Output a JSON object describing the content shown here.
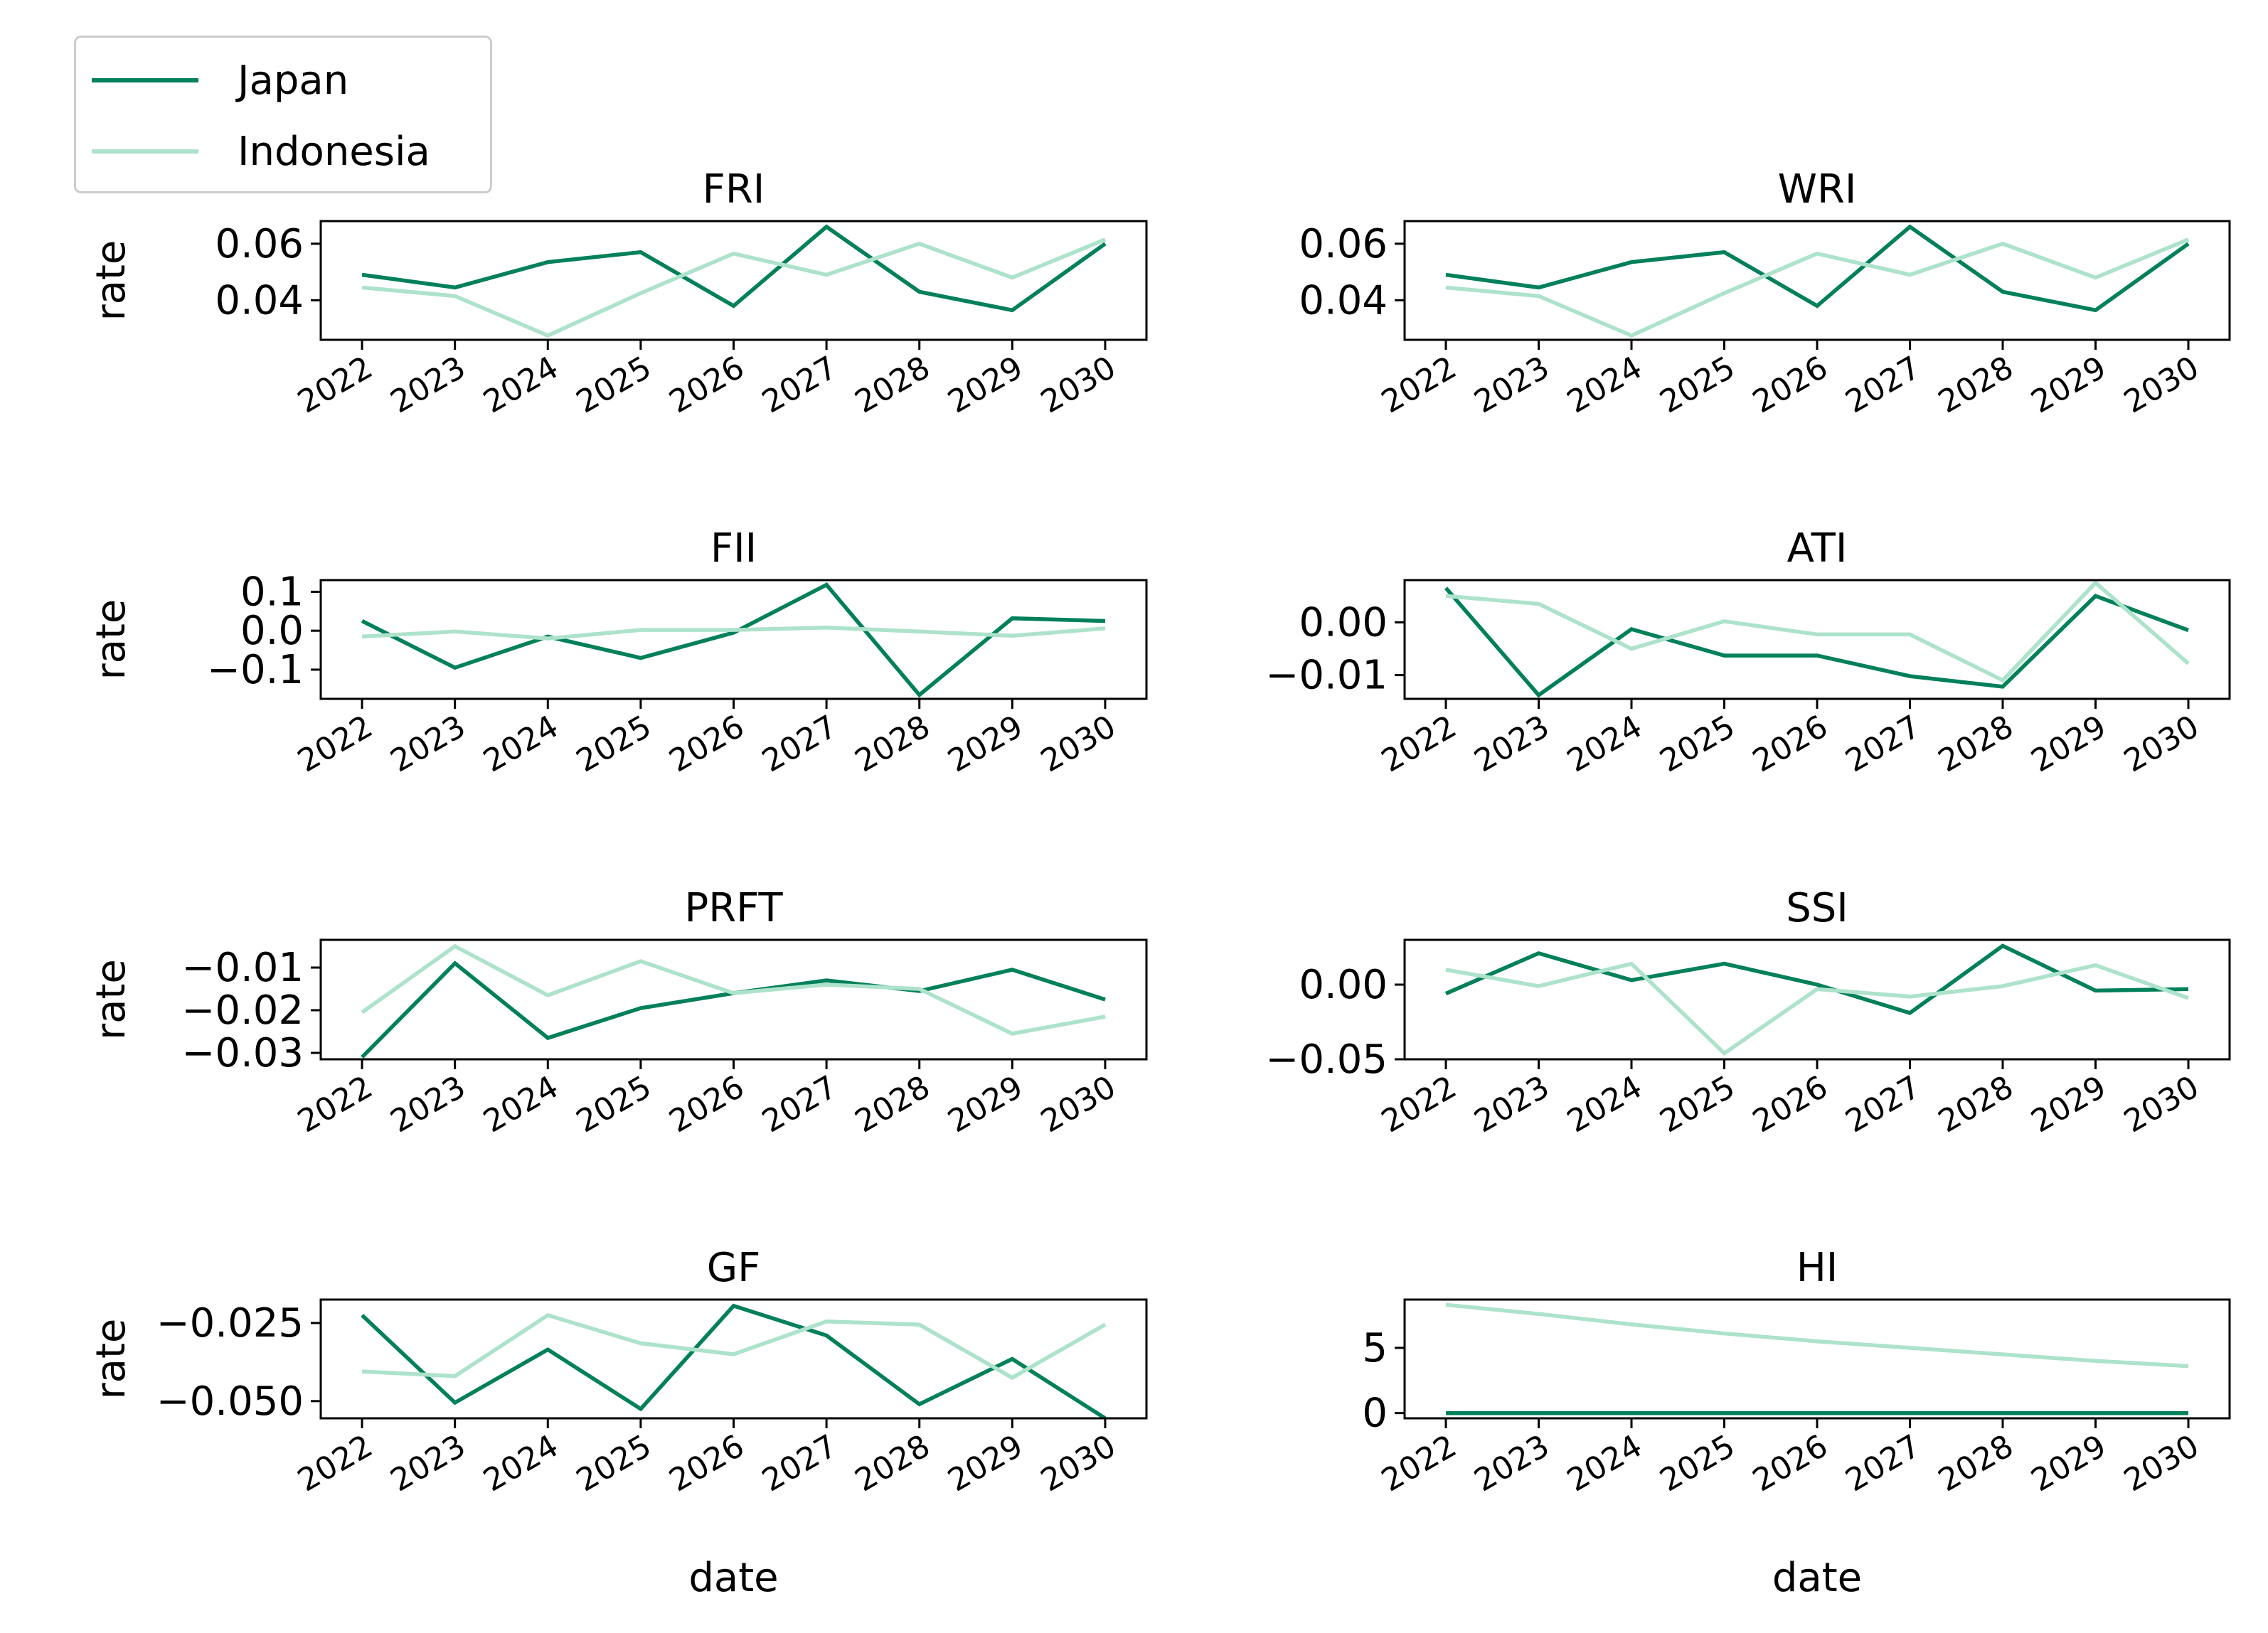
{
  "colors": {
    "japan": "#00805a",
    "indonesia": "#ade2cb"
  },
  "legend": {
    "items": [
      {
        "label": "Japan",
        "color": "#00805a"
      },
      {
        "label": "Indonesia",
        "color": "#ade2cb"
      }
    ]
  },
  "chart_data": [
    {
      "type": "line",
      "title": "FRI",
      "ylabel": "rate",
      "xlabel": "",
      "x": [
        2022,
        2023,
        2024,
        2025,
        2026,
        2027,
        2028,
        2029,
        2030
      ],
      "ylim": [
        0.026,
        0.068
      ],
      "yticks": [
        {
          "v": 0.04,
          "t": "0.04"
        },
        {
          "v": 0.06,
          "t": "0.06"
        }
      ],
      "series": [
        {
          "name": "Japan",
          "values": [
            0.049,
            0.0445,
            0.0535,
            0.057,
            0.038,
            0.066,
            0.043,
            0.0365,
            0.06
          ]
        },
        {
          "name": "Indonesia",
          "values": [
            0.0445,
            0.0415,
            0.0275,
            0.0425,
            0.0565,
            0.049,
            0.06,
            0.048,
            0.0615
          ]
        }
      ]
    },
    {
      "type": "line",
      "title": "WRI",
      "ylabel": "",
      "xlabel": "",
      "x": [
        2022,
        2023,
        2024,
        2025,
        2026,
        2027,
        2028,
        2029,
        2030
      ],
      "ylim": [
        0.026,
        0.068
      ],
      "yticks": [
        {
          "v": 0.04,
          "t": "0.04"
        },
        {
          "v": 0.06,
          "t": "0.06"
        }
      ],
      "series": [
        {
          "name": "Japan",
          "values": [
            0.049,
            0.0445,
            0.0535,
            0.057,
            0.038,
            0.066,
            0.043,
            0.0365,
            0.06
          ]
        },
        {
          "name": "Indonesia",
          "values": [
            0.0445,
            0.0415,
            0.0275,
            0.0425,
            0.0565,
            0.049,
            0.06,
            0.048,
            0.0615
          ]
        }
      ]
    },
    {
      "type": "line",
      "title": "FII",
      "ylabel": "rate",
      "xlabel": "",
      "x": [
        2022,
        2023,
        2024,
        2025,
        2026,
        2027,
        2028,
        2029,
        2030
      ],
      "ylim": [
        -0.175,
        0.13
      ],
      "yticks": [
        {
          "v": -0.1,
          "t": "−0.1"
        },
        {
          "v": 0.0,
          "t": "0.0"
        },
        {
          "v": 0.1,
          "t": "0.1"
        }
      ],
      "series": [
        {
          "name": "Japan",
          "values": [
            0.025,
            -0.095,
            -0.015,
            -0.07,
            -0.005,
            0.118,
            -0.165,
            0.032,
            0.025
          ]
        },
        {
          "name": "Indonesia",
          "values": [
            -0.015,
            -0.002,
            -0.02,
            0.002,
            0.002,
            0.008,
            -0.002,
            -0.013,
            0.006
          ]
        }
      ]
    },
    {
      "type": "line",
      "title": "ATI",
      "ylabel": "",
      "xlabel": "",
      "x": [
        2022,
        2023,
        2024,
        2025,
        2026,
        2027,
        2028,
        2029,
        2030
      ],
      "ylim": [
        -0.0145,
        0.008
      ],
      "yticks": [
        {
          "v": -0.01,
          "t": "−0.01"
        },
        {
          "v": 0.0,
          "t": "0.00"
        }
      ],
      "series": [
        {
          "name": "Japan",
          "values": [
            0.0065,
            -0.0138,
            -0.0013,
            -0.0063,
            -0.0063,
            -0.0102,
            -0.0122,
            0.005,
            -0.0015
          ]
        },
        {
          "name": "Indonesia",
          "values": [
            0.005,
            0.0035,
            -0.005,
            0.0002,
            -0.0023,
            -0.0023,
            -0.011,
            0.0075,
            -0.0078
          ]
        }
      ]
    },
    {
      "type": "line",
      "title": "PRFT",
      "ylabel": "rate",
      "xlabel": "",
      "x": [
        2022,
        2023,
        2024,
        2025,
        2026,
        2027,
        2028,
        2029,
        2030
      ],
      "ylim": [
        -0.0315,
        -0.0035
      ],
      "yticks": [
        {
          "v": -0.03,
          "t": "−0.03"
        },
        {
          "v": -0.02,
          "t": "−0.02"
        },
        {
          "v": -0.01,
          "t": "−0.01"
        }
      ],
      "series": [
        {
          "name": "Japan",
          "values": [
            -0.031,
            -0.009,
            -0.0265,
            -0.0195,
            -0.016,
            -0.013,
            -0.0155,
            -0.0105,
            -0.0175
          ]
        },
        {
          "name": "Indonesia",
          "values": [
            -0.0205,
            -0.005,
            -0.0165,
            -0.0085,
            -0.016,
            -0.014,
            -0.015,
            -0.0255,
            -0.0215
          ]
        }
      ]
    },
    {
      "type": "line",
      "title": "SSI",
      "ylabel": "",
      "xlabel": "",
      "x": [
        2022,
        2023,
        2024,
        2025,
        2026,
        2027,
        2028,
        2029,
        2030
      ],
      "ylim": [
        -0.05,
        0.03
      ],
      "yticks": [
        {
          "v": -0.05,
          "t": "−0.05"
        },
        {
          "v": 0.0,
          "t": "0.00"
        }
      ],
      "series": [
        {
          "name": "Japan",
          "values": [
            -0.006,
            0.021,
            0.003,
            0.014,
            0.0,
            -0.019,
            0.026,
            -0.004,
            -0.003
          ]
        },
        {
          "name": "Indonesia",
          "values": [
            0.01,
            -0.001,
            0.014,
            -0.046,
            -0.003,
            -0.008,
            -0.001,
            0.013,
            -0.009
          ]
        }
      ]
    },
    {
      "type": "line",
      "title": "GF",
      "ylabel": "rate",
      "xlabel": "date",
      "x": [
        2022,
        2023,
        2024,
        2025,
        2026,
        2027,
        2028,
        2029,
        2030
      ],
      "ylim": [
        -0.0555,
        -0.0175
      ],
      "yticks": [
        {
          "v": -0.05,
          "t": "−0.050"
        },
        {
          "v": -0.025,
          "t": "−0.025"
        }
      ],
      "series": [
        {
          "name": "Japan",
          "values": [
            -0.0225,
            -0.0505,
            -0.0335,
            -0.0525,
            -0.0195,
            -0.029,
            -0.051,
            -0.0365,
            -0.0555
          ]
        },
        {
          "name": "Indonesia",
          "values": [
            -0.0405,
            -0.042,
            -0.0225,
            -0.0315,
            -0.035,
            -0.0245,
            -0.0255,
            -0.0425,
            -0.0255
          ]
        }
      ]
    },
    {
      "type": "line",
      "title": "HI",
      "ylabel": "",
      "xlabel": "date",
      "x": [
        2022,
        2023,
        2024,
        2025,
        2026,
        2027,
        2028,
        2029,
        2030
      ],
      "ylim": [
        -0.4,
        8.7
      ],
      "yticks": [
        {
          "v": 0,
          "t": "0"
        },
        {
          "v": 5,
          "t": "5"
        }
      ],
      "series": [
        {
          "name": "Japan",
          "values": [
            0,
            0,
            0,
            0,
            0,
            0,
            0,
            0,
            0
          ]
        },
        {
          "name": "Indonesia",
          "values": [
            8.3,
            7.6,
            6.8,
            6.1,
            5.5,
            5.0,
            4.5,
            4.0,
            3.6
          ]
        }
      ]
    }
  ]
}
